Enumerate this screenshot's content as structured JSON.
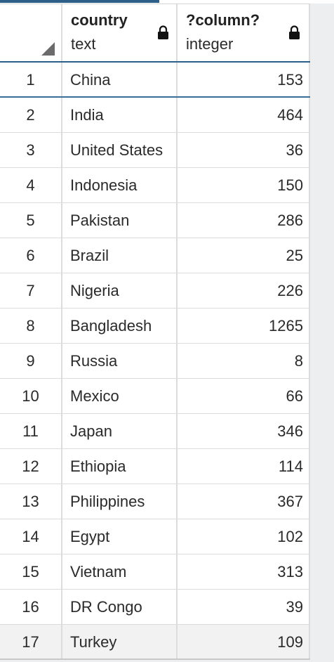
{
  "columns": [
    {
      "name": "country",
      "type": "text",
      "icon": "lock-icon"
    },
    {
      "name": "?column?",
      "type": "integer",
      "icon": "lock-icon"
    }
  ],
  "rows": [
    {
      "n": "1",
      "country": "China",
      "value": "153"
    },
    {
      "n": "2",
      "country": "India",
      "value": "464"
    },
    {
      "n": "3",
      "country": "United States",
      "value": "36"
    },
    {
      "n": "4",
      "country": "Indonesia",
      "value": "150"
    },
    {
      "n": "5",
      "country": "Pakistan",
      "value": "286"
    },
    {
      "n": "6",
      "country": "Brazil",
      "value": "25"
    },
    {
      "n": "7",
      "country": "Nigeria",
      "value": "226"
    },
    {
      "n": "8",
      "country": "Bangladesh",
      "value": "1265"
    },
    {
      "n": "9",
      "country": "Russia",
      "value": "8"
    },
    {
      "n": "10",
      "country": "Mexico",
      "value": "66"
    },
    {
      "n": "11",
      "country": "Japan",
      "value": "346"
    },
    {
      "n": "12",
      "country": "Ethiopia",
      "value": "114"
    },
    {
      "n": "13",
      "country": "Philippines",
      "value": "367"
    },
    {
      "n": "14",
      "country": "Egypt",
      "value": "102"
    },
    {
      "n": "15",
      "country": "Vietnam",
      "value": "313"
    },
    {
      "n": "16",
      "country": "DR Congo",
      "value": "39"
    },
    {
      "n": "17",
      "country": "Turkey",
      "value": "109"
    }
  ],
  "colors": {
    "header_underline": "#2b5f89",
    "grid_line": "#dcdcdc",
    "background": "#eceef0"
  }
}
